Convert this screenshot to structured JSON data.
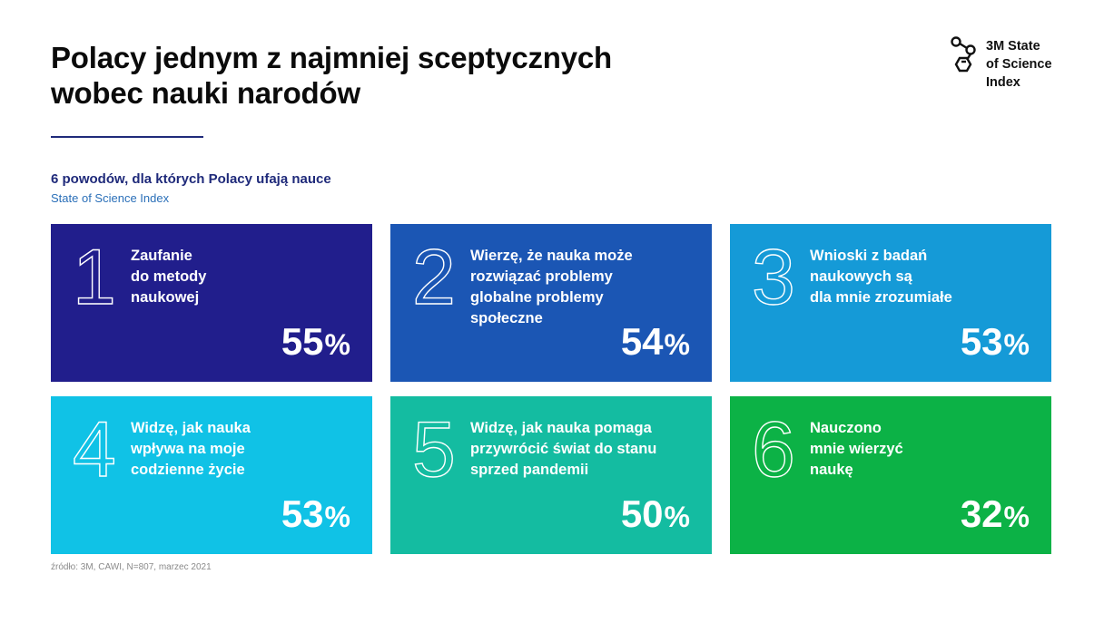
{
  "title": {
    "lines": [
      "Polacy jednym z najmniej sceptycznych",
      "wobec nauki narodów"
    ]
  },
  "logo": {
    "icon": "molecule-icon",
    "lines": [
      "3M State",
      "of Science",
      "Index"
    ]
  },
  "subtitle": "6 powodów, dla których Polacy ufają nauce",
  "source_line": "State of Science Index",
  "footnote": "źródło: 3M, CAWI, N=807, marzec 2021",
  "colors": {
    "card_1": "#211e8c",
    "card_2": "#1b56b4",
    "card_3": "#159ad7",
    "card_4": "#10c2e6",
    "card_5": "#14bca1",
    "card_6": "#0cb246",
    "title": "#0b0b0b",
    "accent": "#1f2a7a"
  },
  "chart_data": {
    "type": "table",
    "title": "6 powodów, dla których Polacy ufają nauce",
    "unit": "%",
    "items": [
      {
        "rank": "1",
        "label_lines": [
          "Zaufanie",
          "do metody",
          "naukowej"
        ],
        "value": 55,
        "value_text": "55"
      },
      {
        "rank": "2",
        "label_lines": [
          "Wierzę, że nauka może",
          "rozwiązać problemy",
          "globalne problemy",
          "społeczne"
        ],
        "value": 54,
        "value_text": "54"
      },
      {
        "rank": "3",
        "label_lines": [
          "Wnioski z badań",
          "naukowych są",
          "dla mnie zrozumiałe"
        ],
        "value": 53,
        "value_text": "53"
      },
      {
        "rank": "4",
        "label_lines": [
          "Widzę, jak nauka",
          "wpływa na moje",
          "codzienne życie"
        ],
        "value": 53,
        "value_text": "53"
      },
      {
        "rank": "5",
        "label_lines": [
          "Widzę, jak nauka pomaga",
          "przywrócić świat do stanu",
          "sprzed pandemii"
        ],
        "value": 50,
        "value_text": "50"
      },
      {
        "rank": "6",
        "label_lines": [
          "Nauczono",
          "mnie wierzyć",
          "naukę"
        ],
        "value": 32,
        "value_text": "32"
      }
    ]
  }
}
